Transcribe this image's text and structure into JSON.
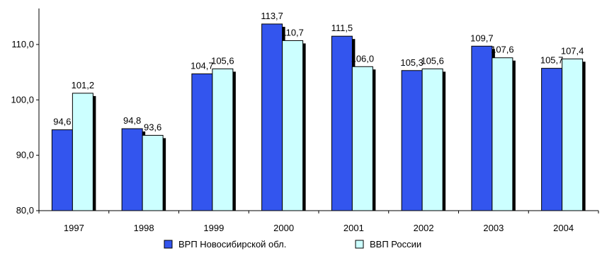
{
  "chart_data": {
    "type": "bar",
    "categories": [
      "1997",
      "1998",
      "1999",
      "2000",
      "2001",
      "2002",
      "2003",
      "2004"
    ],
    "series": [
      {
        "name": "ВРП  Новосибирской обл.",
        "values": [
          94.6,
          94.8,
          104.7,
          113.7,
          111.5,
          105.3,
          109.7,
          105.7
        ],
        "labels": [
          "94,6",
          "94,8",
          "104,7",
          "113,7",
          "111,5",
          "105,3",
          "109,7",
          "105,7"
        ],
        "color": "#3355ee"
      },
      {
        "name": "ВВП России",
        "values": [
          101.2,
          93.6,
          105.6,
          110.7,
          106.0,
          105.6,
          107.6,
          107.4
        ],
        "labels": [
          "101,2",
          "93,6",
          "105,6",
          "110,7",
          "106,0",
          "105,6",
          "107,6",
          "107,4"
        ],
        "color": "#ccffff"
      }
    ],
    "yticks": [
      80,
      90,
      100,
      110
    ],
    "ytick_labels": [
      "80,0",
      "90,0",
      "100,0",
      "110,0"
    ],
    "ylim": [
      80,
      116.5
    ],
    "grid": false,
    "legend_position": "bottom",
    "shadow_color": "#000000"
  }
}
